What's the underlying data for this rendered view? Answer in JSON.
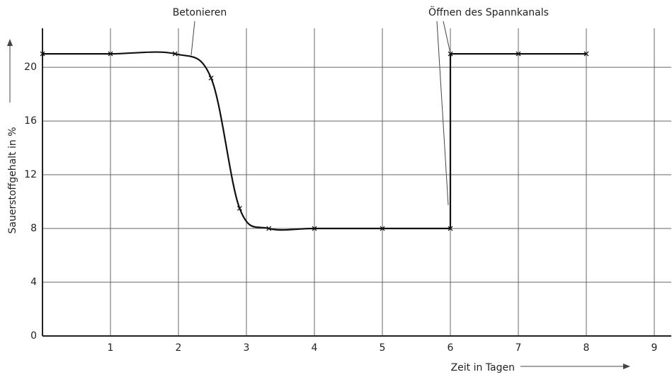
{
  "chart_data": {
    "type": "line",
    "annotations": [
      "Betonieren",
      "Öffnen des Spannkanals"
    ],
    "xlabel": "Zeit in Tagen",
    "ylabel": "Sauerstoffgehalt in %",
    "series": [
      {
        "color": "#111111",
        "x": [
          0,
          1,
          1.95,
          2.48,
          2.9,
          3.33,
          4,
          5,
          6,
          6,
          7,
          8
        ],
        "values": [
          21,
          21,
          21,
          19.2,
          9.5,
          8,
          8,
          8,
          8,
          21,
          21,
          21
        ]
      }
    ],
    "xlim": [
      0,
      9.25
    ],
    "xticks": [
      1,
      2,
      3,
      4,
      5,
      6,
      7,
      8,
      9
    ],
    "ylim": [
      0,
      22.9
    ],
    "yticks": [
      0,
      4,
      8,
      12,
      16,
      20
    ],
    "grid": true
  }
}
